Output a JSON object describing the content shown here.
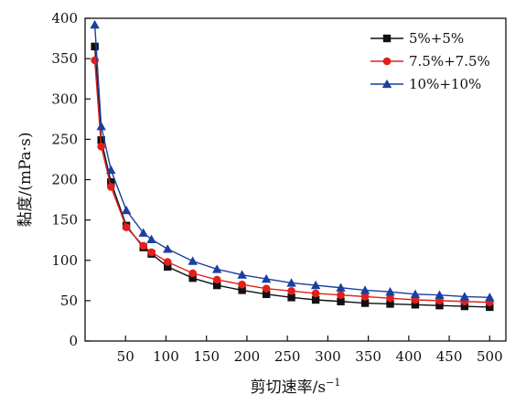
{
  "chart_data": {
    "type": "line",
    "title": "",
    "xlabel": "剪切速率/s",
    "xlabel_superscript": "−1",
    "ylabel": "黏度/(mPa·s)",
    "xlim": [
      0,
      520
    ],
    "ylim": [
      0,
      400
    ],
    "xticks": [
      50,
      100,
      150,
      200,
      250,
      300,
      350,
      400,
      450,
      500
    ],
    "yticks": [
      0,
      50,
      100,
      150,
      200,
      250,
      300,
      350,
      400
    ],
    "grid": false,
    "legend_position": "top-right",
    "series": [
      {
        "name": "5%+5%",
        "color": "#111111",
        "marker": "square",
        "x": [
          12,
          20,
          32,
          51,
          72,
          82,
          102,
          133,
          163,
          194,
          224,
          255,
          285,
          316,
          346,
          377,
          408,
          438,
          469,
          500
        ],
        "y": [
          365,
          249,
          197,
          143,
          116,
          108,
          92,
          78,
          69,
          63,
          58,
          54,
          51,
          49,
          47,
          46,
          45,
          44,
          43,
          42
        ]
      },
      {
        "name": "7.5%+7.5%",
        "color": "#e0201b",
        "marker": "circle",
        "x": [
          12,
          20,
          32,
          51,
          72,
          82,
          102,
          133,
          163,
          194,
          224,
          255,
          285,
          316,
          346,
          377,
          408,
          438,
          469,
          500
        ],
        "y": [
          348,
          241,
          191,
          141,
          118,
          110,
          98,
          84,
          76,
          70,
          65,
          62,
          59,
          57,
          55,
          53,
          51,
          50,
          49,
          48
        ]
      },
      {
        "name": "10%+10%",
        "color": "#1a3fa0",
        "marker": "triangle",
        "x": [
          12,
          20,
          32,
          51,
          72,
          82,
          102,
          133,
          163,
          194,
          224,
          255,
          285,
          316,
          346,
          377,
          408,
          438,
          469,
          500
        ],
        "y": [
          392,
          266,
          212,
          162,
          134,
          126,
          114,
          99,
          89,
          82,
          77,
          72,
          69,
          66,
          63,
          61,
          58,
          57,
          55,
          54
        ]
      }
    ]
  }
}
